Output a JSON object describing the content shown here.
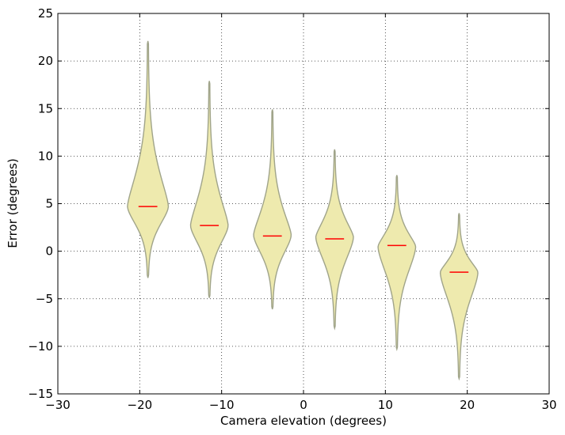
{
  "chart_data": {
    "type": "violin",
    "xlabel": "Camera elevation (degrees)",
    "ylabel": "Error (degrees)",
    "xlim": [
      -30,
      30
    ],
    "ylim": [
      -15,
      25
    ],
    "xticks": [
      -30,
      -20,
      -10,
      0,
      10,
      20,
      30
    ],
    "yticks": [
      -15,
      -10,
      -5,
      0,
      5,
      10,
      15,
      20,
      25
    ],
    "grid": true,
    "colors": {
      "body_fill": "#EEEAAE",
      "body_edge": "#A0A48A",
      "median": "#ff0000"
    },
    "violins": [
      {
        "position": -19,
        "median": 4.7,
        "min": -2.8,
        "max": 22.1,
        "peak": 4.7,
        "width": 2.5
      },
      {
        "position": -11.5,
        "median": 2.7,
        "min": -4.9,
        "max": 17.9,
        "peak": 2.7,
        "width": 2.3
      },
      {
        "position": -3.8,
        "median": 1.6,
        "min": -6.1,
        "max": 14.9,
        "peak": 1.7,
        "width": 2.3
      },
      {
        "position": 3.8,
        "median": 1.3,
        "min": -8.1,
        "max": 10.7,
        "peak": 1.5,
        "width": 2.3
      },
      {
        "position": 11.4,
        "median": 0.6,
        "min": -10.3,
        "max": 8.0,
        "peak": 0.5,
        "width": 2.3
      },
      {
        "position": 19.0,
        "median": -2.2,
        "min": -13.4,
        "max": 4.0,
        "peak": -2.2,
        "width": 2.3
      }
    ]
  }
}
